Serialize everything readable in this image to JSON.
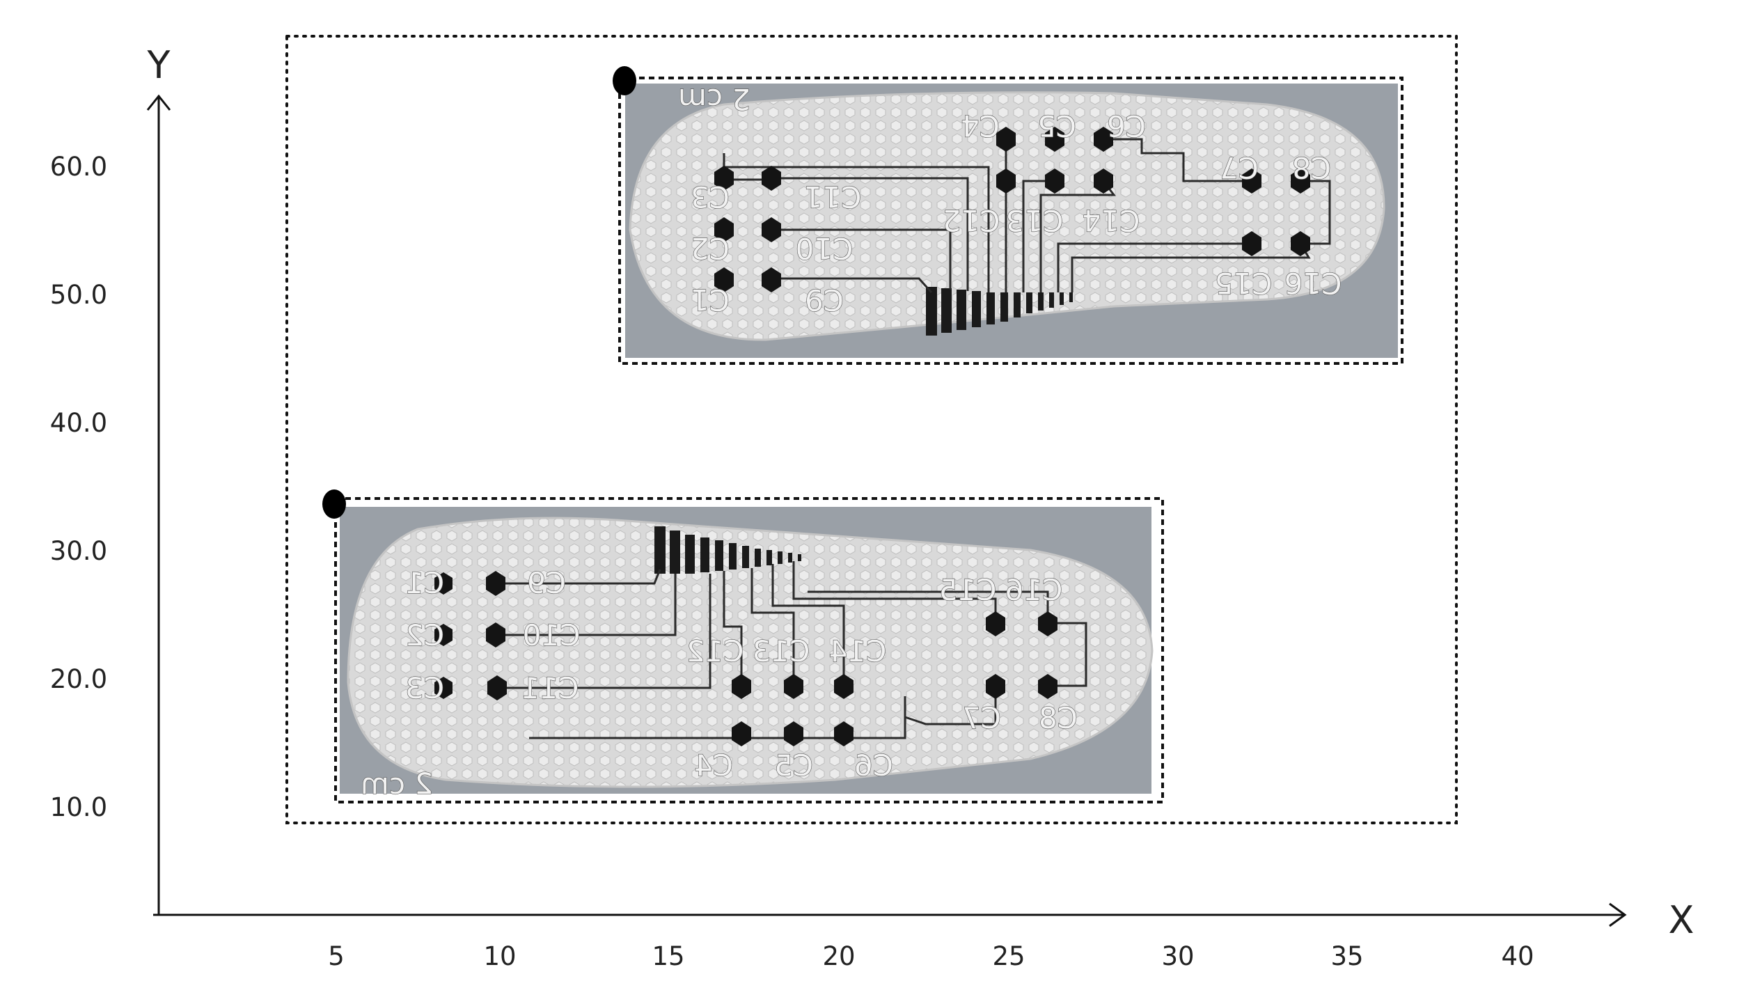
{
  "axes": {
    "x_name": "X",
    "y_name": "Y",
    "x_ticks": [
      "5",
      "10",
      "15",
      "20",
      "25",
      "30",
      "35",
      "40"
    ],
    "y_ticks": [
      "10.0",
      "20.0",
      "30.0",
      "40.0",
      "50.0",
      "60.0"
    ]
  },
  "insoles": [
    {
      "id": "left",
      "scale_label": "2 cm",
      "sensors": {
        "c1": "C1",
        "c2": "C2",
        "c3": "C3",
        "c4": "C4",
        "c5": "C5",
        "c6": "C6",
        "c7": "C7",
        "c8": "C8",
        "c9": "C9",
        "c10": "C10",
        "c11": "C11",
        "c12": "C12",
        "c13": "C13",
        "c14": "C14",
        "c15": "C15",
        "c16": "C16"
      }
    },
    {
      "id": "right",
      "scale_label": "2 cm",
      "sensors": {
        "c1": "C1",
        "c2": "C2",
        "c3": "C3",
        "c4": "C4",
        "c5": "C5",
        "c6": "C6",
        "c7": "C7",
        "c8": "C8",
        "c9": "C9",
        "c10": "C10",
        "c11": "C11",
        "c12": "C12",
        "c13": "C13",
        "c14": "C14",
        "c15": "C15",
        "c16": "C16"
      }
    }
  ],
  "colors": {
    "photo_bg": "#9aa0a7",
    "insole": "#dcdcdc",
    "sensor": "#141414",
    "trace": "#2a2a2a"
  }
}
